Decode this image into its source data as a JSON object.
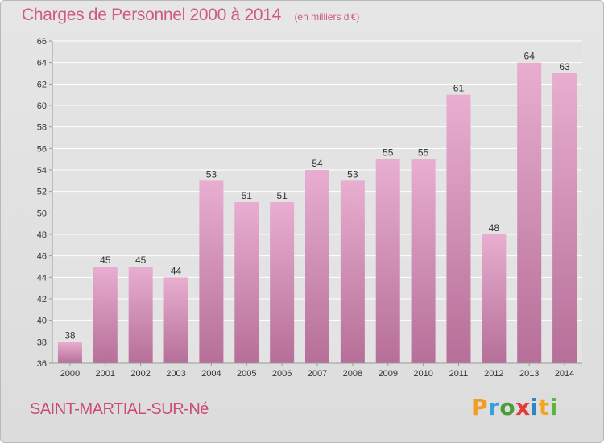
{
  "title": "Charges de Personnel 2000 à 2014",
  "unit_note": "(en milliers d'€)",
  "commune": "SAINT-MARTIAL-SUR-Né",
  "brand": {
    "letters": [
      "P",
      "r",
      "o",
      "x",
      "i",
      "t",
      "i"
    ],
    "colors": [
      "#f39c1f",
      "#3aa0dc",
      "#4a9d3a",
      "#e23b3b",
      "#2e86c8",
      "#f2a51d",
      "#5bb53b"
    ]
  },
  "colors": {
    "bar_light": "#e8aed0",
    "bar_dark": "#b66f98",
    "text": "#d05a86",
    "grid": "#ffffff"
  },
  "chart_data": {
    "type": "bar",
    "title": "Charges de Personnel 2000 à 2014",
    "ylabel": "(en milliers d'€)",
    "categories": [
      "2000",
      "2001",
      "2002",
      "2003",
      "2004",
      "2005",
      "2006",
      "2007",
      "2008",
      "2009",
      "2010",
      "2011",
      "2012",
      "2013",
      "2014"
    ],
    "values": [
      38,
      45,
      45,
      44,
      53,
      51,
      51,
      54,
      53,
      55,
      55,
      61,
      48,
      64,
      63
    ],
    "ylim": [
      36,
      66
    ],
    "yticks": [
      36,
      38,
      40,
      42,
      44,
      46,
      48,
      50,
      52,
      54,
      56,
      58,
      60,
      62,
      64,
      66
    ],
    "grid": true,
    "data_labels": true
  }
}
